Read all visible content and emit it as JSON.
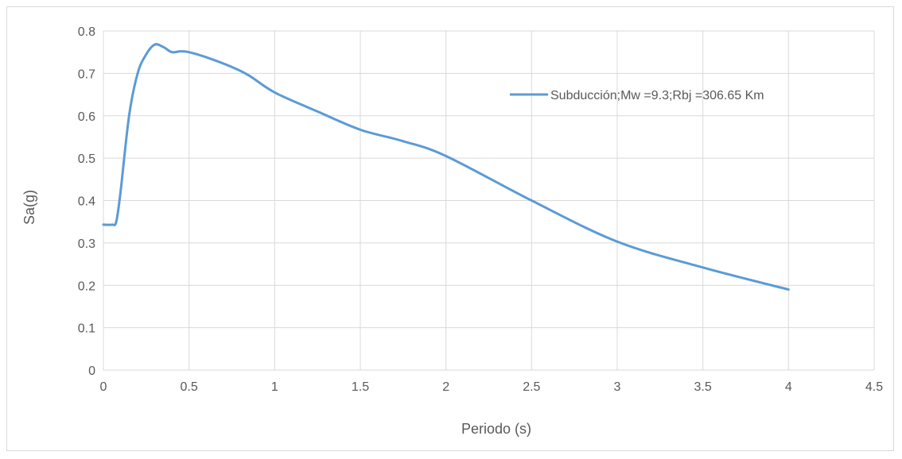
{
  "chart_data": {
    "type": "line",
    "title": "",
    "xlabel": "Periodo (s)",
    "ylabel": "Sa(g)",
    "xlim": [
      0,
      4.5
    ],
    "ylim": [
      0,
      0.8
    ],
    "x_ticks": [
      "0",
      "0.5",
      "1",
      "1.5",
      "2",
      "2.5",
      "3",
      "3.5",
      "4",
      "4.5"
    ],
    "y_ticks": [
      "0",
      "0.1",
      "0.2",
      "0.3",
      "0.4",
      "0.5",
      "0.6",
      "0.7",
      "0.8"
    ],
    "grid": true,
    "legend_position": "top-right",
    "series": [
      {
        "name": "Subducción;Mw =9.3;Rbj =306.65 Km",
        "color": "#5b9bd5",
        "x": [
          0,
          0.05,
          0.075,
          0.1,
          0.15,
          0.2,
          0.25,
          0.3,
          0.35,
          0.4,
          0.45,
          0.5,
          0.6,
          0.75,
          0.85,
          1.0,
          1.25,
          1.5,
          1.75,
          2.0,
          2.5,
          3.0,
          3.5,
          4.0
        ],
        "y": [
          0.343,
          0.343,
          0.35,
          0.42,
          0.6,
          0.7,
          0.745,
          0.768,
          0.762,
          0.75,
          0.752,
          0.75,
          0.738,
          0.715,
          0.695,
          0.655,
          0.61,
          0.567,
          0.54,
          0.505,
          0.4,
          0.303,
          0.242,
          0.19
        ]
      }
    ]
  }
}
